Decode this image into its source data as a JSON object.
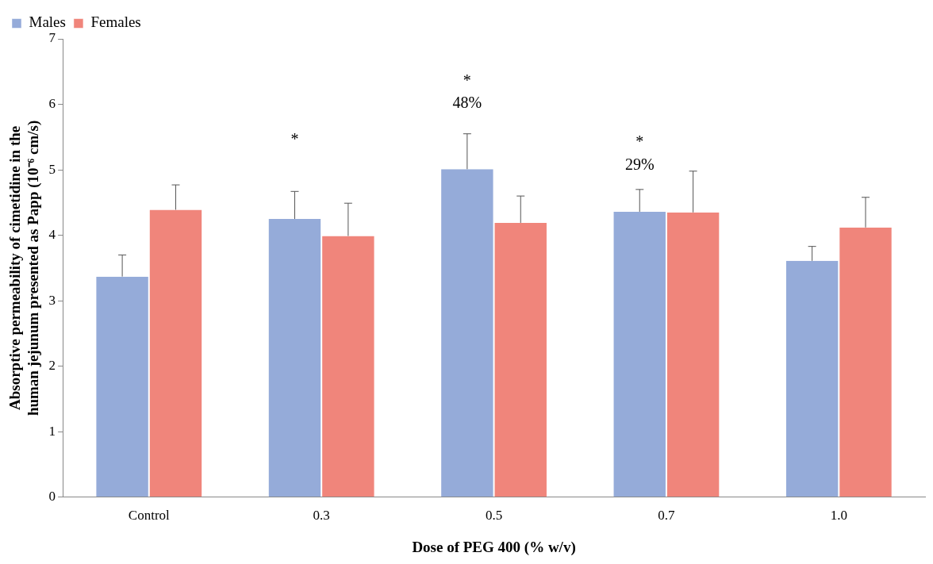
{
  "chart_data": {
    "type": "bar",
    "xlabel": "Dose of PEG 400 (% w/v)",
    "ylabel": "Absorptive permeability of cimetidine in the human jejunum presented as Papp (10⁻⁶ cm/s)",
    "categories": [
      "Control",
      "0.3",
      "0.5",
      "0.7",
      "1.0"
    ],
    "series": [
      {
        "name": "Males",
        "color": "#95abd9",
        "values": [
          3.37,
          4.25,
          5.01,
          4.36,
          3.61
        ],
        "errors": [
          [
            3.37,
            3.7
          ],
          [
            4.25,
            4.67
          ],
          [
            5.01,
            5.55
          ],
          [
            4.36,
            4.7
          ],
          [
            3.61,
            3.83
          ]
        ]
      },
      {
        "name": "Females",
        "color": "#f0857b",
        "values": [
          4.39,
          3.99,
          4.19,
          4.35,
          4.12
        ],
        "errors": [
          [
            4.39,
            4.77
          ],
          [
            3.99,
            4.49
          ],
          [
            4.19,
            4.6
          ],
          [
            4.35,
            4.98
          ],
          [
            4.12,
            4.58
          ]
        ]
      }
    ],
    "ylim": [
      0,
      7
    ],
    "yticks": [
      0,
      1,
      2,
      3,
      4,
      5,
      6,
      7
    ],
    "grid": false,
    "legend": "top left",
    "annotations": [
      "*",
      "*",
      "48%",
      "*",
      "29%"
    ]
  }
}
